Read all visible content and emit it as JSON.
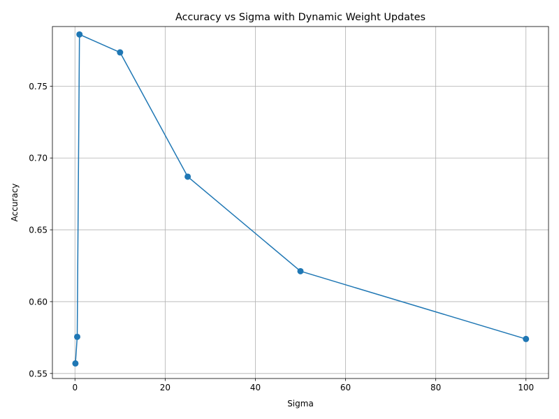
{
  "chart_data": {
    "type": "line",
    "title": "Accuracy vs Sigma with Dynamic Weight Updates",
    "xlabel": "Sigma",
    "ylabel": "Accuracy",
    "xlim": [
      -5,
      105
    ],
    "ylim": [
      0.5465,
      0.7915
    ],
    "grid": true,
    "xticks": [
      0,
      20,
      40,
      60,
      80,
      100
    ],
    "xtick_labels": [
      "0",
      "20",
      "40",
      "60",
      "80",
      "100"
    ],
    "yticks": [
      0.55,
      0.6,
      0.65,
      0.7,
      0.75
    ],
    "ytick_labels": [
      "0.55",
      "0.60",
      "0.65",
      "0.70",
      "0.75"
    ],
    "series": [
      {
        "color": "#1f77b4",
        "marker": "circle",
        "x": [
          0.1,
          0.5,
          1,
          10,
          25,
          50,
          100
        ],
        "y": [
          0.557,
          0.5755,
          0.786,
          0.7735,
          0.687,
          0.6212,
          0.574
        ]
      }
    ]
  }
}
